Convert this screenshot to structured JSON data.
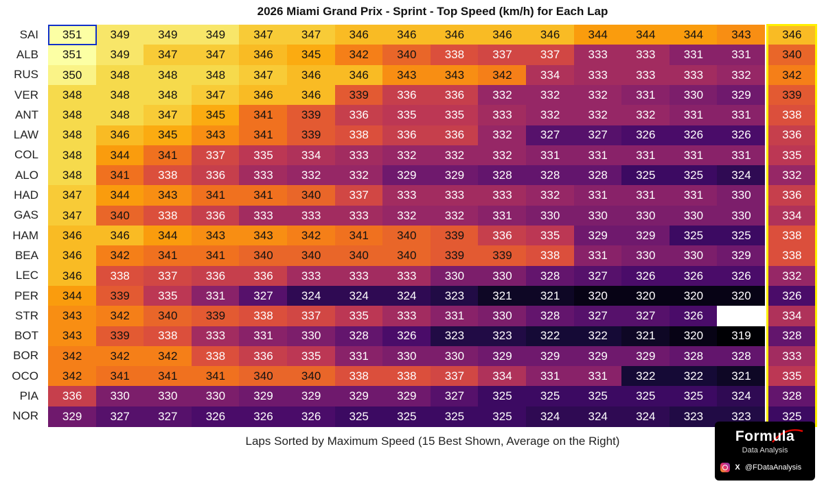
{
  "chart_data": {
    "type": "heatmap",
    "title": "2026 Miami Grand Prix - Sprint - Top Speed (km/h) for Each Lap",
    "xlabel": "Laps Sorted by Maximum Speed (15 Best Shown, Average on the Right)",
    "colormap": "inferno",
    "color_range": [
      319,
      351
    ],
    "rows": [
      "SAI",
      "ALB",
      "RUS",
      "VER",
      "ANT",
      "LAW",
      "COL",
      "ALO",
      "HAD",
      "GAS",
      "HAM",
      "BEA",
      "LEC",
      "PER",
      "STR",
      "BOT",
      "BOR",
      "OCO",
      "PIA",
      "NOR"
    ],
    "values": [
      [
        351,
        349,
        349,
        349,
        347,
        347,
        346,
        346,
        346,
        346,
        346,
        344,
        344,
        344,
        343
      ],
      [
        351,
        349,
        347,
        347,
        346,
        345,
        342,
        340,
        338,
        337,
        337,
        333,
        333,
        331,
        331
      ],
      [
        350,
        348,
        348,
        348,
        347,
        346,
        346,
        343,
        343,
        342,
        334,
        333,
        333,
        333,
        332
      ],
      [
        348,
        348,
        348,
        347,
        346,
        346,
        339,
        336,
        336,
        332,
        332,
        332,
        331,
        330,
        329
      ],
      [
        348,
        348,
        347,
        345,
        341,
        339,
        336,
        335,
        335,
        333,
        332,
        332,
        332,
        331,
        331
      ],
      [
        348,
        346,
        345,
        343,
        341,
        339,
        338,
        336,
        336,
        332,
        327,
        327,
        326,
        326,
        326
      ],
      [
        348,
        344,
        341,
        337,
        335,
        334,
        333,
        332,
        332,
        332,
        331,
        331,
        331,
        331,
        331
      ],
      [
        348,
        341,
        338,
        336,
        333,
        332,
        332,
        329,
        329,
        328,
        328,
        328,
        325,
        325,
        324
      ],
      [
        347,
        344,
        343,
        341,
        341,
        340,
        337,
        333,
        333,
        333,
        332,
        331,
        331,
        331,
        330
      ],
      [
        347,
        340,
        338,
        336,
        333,
        333,
        333,
        332,
        332,
        331,
        330,
        330,
        330,
        330,
        330
      ],
      [
        346,
        346,
        344,
        343,
        343,
        342,
        341,
        340,
        339,
        336,
        335,
        329,
        329,
        325,
        325
      ],
      [
        346,
        342,
        341,
        341,
        340,
        340,
        340,
        340,
        339,
        339,
        338,
        331,
        330,
        330,
        329
      ],
      [
        346,
        338,
        337,
        336,
        336,
        333,
        333,
        333,
        330,
        330,
        328,
        327,
        326,
        326,
        326
      ],
      [
        344,
        339,
        335,
        331,
        327,
        324,
        324,
        324,
        323,
        321,
        321,
        320,
        320,
        320,
        320
      ],
      [
        343,
        342,
        340,
        339,
        338,
        337,
        335,
        333,
        331,
        330,
        328,
        327,
        327,
        326,
        null
      ],
      [
        343,
        339,
        338,
        333,
        331,
        330,
        328,
        326,
        323,
        323,
        322,
        322,
        321,
        320,
        319
      ],
      [
        342,
        342,
        342,
        338,
        336,
        335,
        331,
        330,
        330,
        329,
        329,
        329,
        329,
        328,
        328
      ],
      [
        342,
        341,
        341,
        341,
        340,
        340,
        338,
        338,
        337,
        334,
        331,
        331,
        322,
        322,
        321
      ],
      [
        336,
        330,
        330,
        330,
        329,
        329,
        329,
        329,
        327,
        325,
        325,
        325,
        325,
        325,
        324
      ],
      [
        329,
        327,
        327,
        326,
        326,
        326,
        325,
        325,
        325,
        325,
        324,
        324,
        324,
        323,
        323
      ]
    ],
    "averages": [
      346,
      340,
      342,
      339,
      338,
      336,
      335,
      332,
      336,
      334,
      338,
      338,
      332,
      326,
      334,
      328,
      333,
      335,
      328,
      325
    ]
  },
  "branding": {
    "name": "Formula",
    "subtitle": "Data Analysis",
    "handle": "@FDataAnalysis",
    "x_label": "X",
    "icons": [
      "instagram-icon",
      "x-icon"
    ]
  }
}
